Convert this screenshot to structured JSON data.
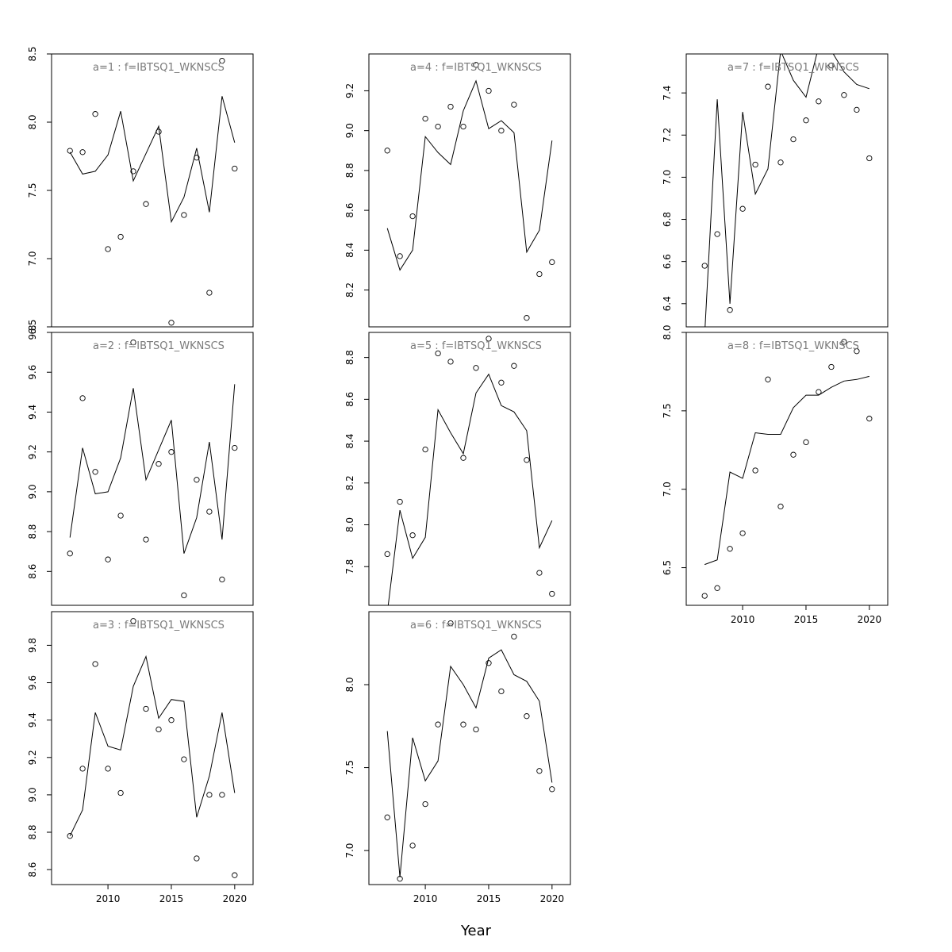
{
  "chart_data": {
    "type": "scatter",
    "xlabel": "Year",
    "panels": [
      {
        "title": "a=1 : f=IBTSQ1_WKNSCS",
        "ylim": [
          6.5,
          8.5
        ],
        "yticks": [
          6.5,
          7.0,
          7.5,
          8.0,
          8.5
        ],
        "show_xaxis": false,
        "points": {
          "x": [
            2007,
            2008,
            2009,
            2010,
            2011,
            2012,
            2013,
            2014,
            2015,
            2016,
            2017,
            2018,
            2019,
            2020
          ],
          "y": [
            7.79,
            7.78,
            8.06,
            7.07,
            7.16,
            7.64,
            7.4,
            7.93,
            6.53,
            7.32,
            7.74,
            6.75,
            8.45,
            7.66
          ]
        },
        "line": {
          "x": [
            2007,
            2008,
            2009,
            2010,
            2011,
            2012,
            2013,
            2014,
            2015,
            2016,
            2017,
            2018,
            2019,
            2020
          ],
          "y": [
            7.78,
            7.62,
            7.64,
            7.76,
            8.08,
            7.57,
            7.77,
            7.97,
            7.27,
            7.45,
            7.81,
            7.34,
            8.19,
            7.85
          ]
        }
      },
      {
        "title": "a=2 : f=IBTSQ1_WKNSCS",
        "ylim": [
          8.43,
          9.8
        ],
        "yticks": [
          8.6,
          8.8,
          9.0,
          9.2,
          9.4,
          9.6,
          9.8
        ],
        "show_xaxis": false,
        "points": {
          "x": [
            2007,
            2008,
            2009,
            2010,
            2011,
            2012,
            2013,
            2014,
            2015,
            2016,
            2017,
            2018,
            2019,
            2020
          ],
          "y": [
            8.69,
            9.47,
            9.1,
            8.66,
            8.88,
            9.75,
            8.76,
            9.14,
            9.2,
            8.48,
            9.06,
            8.9,
            8.56,
            9.22
          ]
        },
        "line": {
          "x": [
            2007,
            2008,
            2009,
            2010,
            2011,
            2012,
            2013,
            2014,
            2015,
            2016,
            2017,
            2018,
            2019,
            2020
          ],
          "y": [
            8.77,
            9.22,
            8.99,
            9.0,
            9.17,
            9.52,
            9.06,
            9.21,
            9.36,
            8.69,
            8.87,
            9.25,
            8.76,
            9.54
          ]
        }
      },
      {
        "title": "a=3 : f=IBTSQ1_WKNSCS",
        "ylim": [
          8.52,
          9.98
        ],
        "yticks": [
          8.6,
          8.8,
          9.0,
          9.2,
          9.4,
          9.6,
          9.8
        ],
        "show_xaxis": true,
        "xticks": [
          2010,
          2015,
          2020
        ],
        "points": {
          "x": [
            2007,
            2008,
            2009,
            2010,
            2011,
            2012,
            2013,
            2014,
            2015,
            2016,
            2017,
            2018,
            2019,
            2020
          ],
          "y": [
            8.78,
            9.14,
            9.7,
            9.14,
            9.01,
            9.93,
            9.46,
            9.35,
            9.4,
            9.19,
            8.66,
            9.0,
            9.0,
            8.57
          ]
        },
        "line": {
          "x": [
            2007,
            2008,
            2009,
            2010,
            2011,
            2012,
            2013,
            2014,
            2015,
            2016,
            2017,
            2018,
            2019,
            2020
          ],
          "y": [
            8.78,
            8.92,
            9.44,
            9.26,
            9.24,
            9.58,
            9.74,
            9.41,
            9.51,
            9.5,
            8.88,
            9.1,
            9.44,
            9.01
          ]
        }
      },
      {
        "title": "a=4 : f=IBTSQ1_WKNSCS",
        "ylim": [
          8.015,
          9.385
        ],
        "yticks": [
          8.2,
          8.4,
          8.6,
          8.8,
          9.0,
          9.2
        ],
        "show_xaxis": false,
        "points": {
          "x": [
            2007,
            2008,
            2009,
            2010,
            2011,
            2012,
            2013,
            2014,
            2015,
            2016,
            2017,
            2018,
            2019,
            2020
          ],
          "y": [
            8.9,
            8.37,
            8.57,
            9.06,
            9.02,
            9.12,
            9.02,
            9.33,
            9.2,
            9.0,
            9.13,
            8.06,
            8.28,
            8.34
          ]
        },
        "line": {
          "x": [
            2007,
            2008,
            2009,
            2010,
            2011,
            2012,
            2013,
            2014,
            2015,
            2016,
            2017,
            2018,
            2019,
            2020
          ],
          "y": [
            8.51,
            8.3,
            8.4,
            8.97,
            8.89,
            8.83,
            9.1,
            9.25,
            9.01,
            9.05,
            8.99,
            8.39,
            8.5,
            8.95
          ]
        }
      },
      {
        "title": "a=5 : f=IBTSQ1_WKNSCS",
        "ylim": [
          7.615,
          8.92
        ],
        "yticks": [
          7.8,
          8.0,
          8.2,
          8.4,
          8.6,
          8.8
        ],
        "show_xaxis": false,
        "points": {
          "x": [
            2007,
            2008,
            2009,
            2010,
            2011,
            2012,
            2013,
            2014,
            2015,
            2016,
            2017,
            2018,
            2019,
            2020
          ],
          "y": [
            7.86,
            8.11,
            7.95,
            8.36,
            8.82,
            8.78,
            8.32,
            8.75,
            8.89,
            8.68,
            8.76,
            8.31,
            7.77,
            7.67
          ]
        },
        "line": {
          "x": [
            2007,
            2008,
            2009,
            2010,
            2011,
            2012,
            2013,
            2014,
            2015,
            2016,
            2017,
            2018,
            2019,
            2020
          ],
          "y": [
            7.58,
            8.07,
            7.84,
            7.94,
            8.55,
            8.44,
            8.34,
            8.63,
            8.72,
            8.57,
            8.54,
            8.45,
            7.89,
            8.02
          ]
        }
      },
      {
        "title": "a=6 : f=IBTSQ1_WKNSCS",
        "ylim": [
          6.795,
          8.44
        ],
        "yticks": [
          7.0,
          7.5,
          8.0
        ],
        "show_xaxis": true,
        "xticks": [
          2010,
          2015,
          2020
        ],
        "points": {
          "x": [
            2007,
            2008,
            2009,
            2010,
            2011,
            2012,
            2013,
            2014,
            2015,
            2016,
            2017,
            2018,
            2019,
            2020
          ],
          "y": [
            7.2,
            6.83,
            7.03,
            7.28,
            7.76,
            8.37,
            7.76,
            7.73,
            8.13,
            7.96,
            8.29,
            7.81,
            7.48,
            7.37
          ]
        },
        "line": {
          "x": [
            2007,
            2008,
            2009,
            2010,
            2011,
            2012,
            2013,
            2014,
            2015,
            2016,
            2017,
            2018,
            2019,
            2020
          ],
          "y": [
            7.72,
            6.84,
            7.68,
            7.42,
            7.54,
            8.11,
            8.0,
            7.86,
            8.16,
            8.21,
            8.06,
            8.02,
            7.9,
            7.41
          ]
        }
      },
      {
        "title": "a=7 : f=IBTSQ1_WKNSCS",
        "ylim": [
          6.29,
          7.585
        ],
        "yticks": [
          6.4,
          6.6,
          6.8,
          7.0,
          7.2,
          7.4
        ],
        "show_xaxis": false,
        "points": {
          "x": [
            2007,
            2008,
            2009,
            2010,
            2011,
            2012,
            2013,
            2014,
            2015,
            2016,
            2017,
            2018,
            2019,
            2020
          ],
          "y": [
            6.58,
            6.73,
            6.37,
            6.85,
            7.06,
            7.43,
            7.07,
            7.18,
            7.27,
            7.36,
            7.53,
            7.39,
            7.32,
            7.09
          ]
        },
        "line": {
          "x": [
            2007,
            2008,
            2009,
            2010,
            2011,
            2012,
            2013,
            2014,
            2015,
            2016,
            2017,
            2018,
            2019,
            2020
          ],
          "y": [
            6.25,
            7.37,
            6.4,
            7.31,
            6.92,
            7.04,
            7.6,
            7.46,
            7.38,
            7.62,
            7.6,
            7.5,
            7.44,
            7.42
          ]
        }
      },
      {
        "title": "a=8 : f=IBTSQ1_WKNSCS",
        "ylim": [
          6.26,
          8.0
        ],
        "yticks": [
          6.5,
          7.0,
          7.5,
          8.0
        ],
        "show_xaxis": true,
        "xticks": [
          2010,
          2015,
          2020
        ],
        "points": {
          "x": [
            2007,
            2008,
            2009,
            2010,
            2011,
            2012,
            2013,
            2014,
            2015,
            2016,
            2017,
            2018,
            2019,
            2020
          ],
          "y": [
            6.32,
            6.37,
            6.62,
            6.72,
            7.12,
            7.7,
            6.89,
            7.22,
            7.3,
            7.62,
            7.78,
            7.94,
            7.88,
            7.45
          ]
        },
        "line": {
          "x": [
            2007,
            2008,
            2009,
            2010,
            2011,
            2012,
            2013,
            2014,
            2015,
            2016,
            2017,
            2018,
            2019,
            2020
          ],
          "y": [
            6.52,
            6.55,
            7.11,
            7.07,
            7.36,
            7.35,
            7.35,
            7.52,
            7.6,
            7.6,
            7.65,
            7.69,
            7.7,
            7.72
          ]
        }
      }
    ]
  }
}
